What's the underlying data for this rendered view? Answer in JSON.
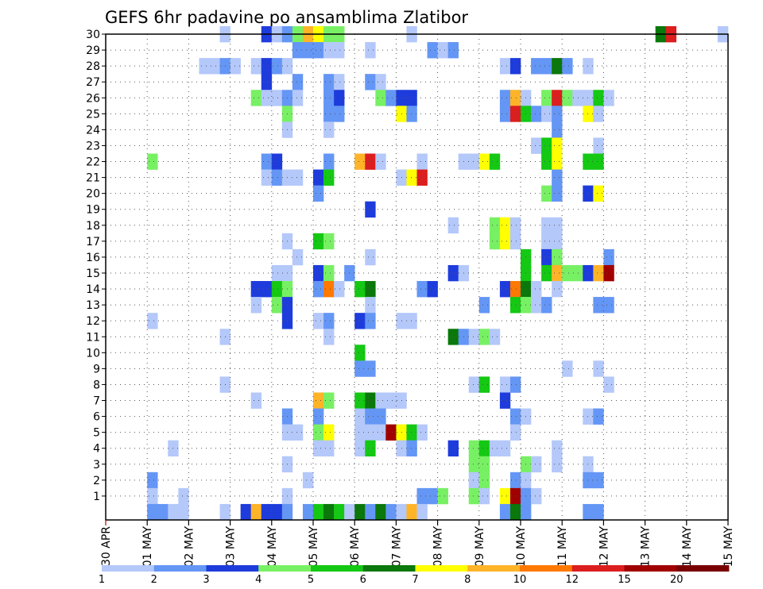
{
  "chart_data": {
    "type": "heatmap",
    "title": "GEFS 6hr padavine po ansamblima Zlatibor",
    "xlabel": "",
    "ylabel": "",
    "x_tick_labels": [
      "30 APR",
      "01 MAY",
      "02 MAY",
      "03 MAY",
      "04 MAY",
      "05 MAY",
      "06 MAY",
      "07 MAY",
      "08 MAY",
      "09 MAY",
      "10 MAY",
      "11 MAY",
      "12 MAY",
      "13 MAY",
      "14 MAY",
      "15 MAY"
    ],
    "y_tick_labels": [
      "1",
      "2",
      "3",
      "4",
      "5",
      "6",
      "7",
      "8",
      "9",
      "10",
      "11",
      "12",
      "13",
      "14",
      "15",
      "16",
      "17",
      "18",
      "19",
      "20",
      "21",
      "22",
      "23",
      "24",
      "25",
      "26",
      "27",
      "28",
      "29",
      "30"
    ],
    "n_times": 60,
    "n_members": 30,
    "grid": "dotted",
    "legend": {
      "position": "bottom",
      "labels": [
        "1",
        "2",
        "3",
        "4",
        "5",
        "6",
        "7",
        "8",
        "10",
        "12",
        "15",
        "20"
      ],
      "colors": [
        "#b4c8fa",
        "#6496f5",
        "#1e3cdc",
        "#78f064",
        "#14c814",
        "#0a780a",
        "#ffff00",
        "#ffb428",
        "#ff7800",
        "#dc1e1e",
        "#a00000",
        "#780000"
      ]
    },
    "color_levels": {
      "1": "#b4c8fa",
      "2": "#6496f5",
      "3": "#1e3cdc",
      "4": "#78f064",
      "5": "#14c814",
      "6": "#0a780a",
      "7": "#ffff00",
      "8": "#ffb428",
      "10": "#ff7800",
      "12": "#dc1e1e",
      "15": "#a00000",
      "20": "#780000"
    },
    "cells": [
      [
        30,
        11,
        1
      ],
      [
        30,
        15,
        3
      ],
      [
        30,
        16,
        1
      ],
      [
        30,
        17,
        2
      ],
      [
        30,
        18,
        4
      ],
      [
        30,
        19,
        8
      ],
      [
        30,
        20,
        7
      ],
      [
        30,
        21,
        4
      ],
      [
        30,
        22,
        4
      ],
      [
        30,
        29,
        1
      ],
      [
        30,
        53,
        6
      ],
      [
        30,
        54,
        12
      ],
      [
        30,
        59,
        1
      ],
      [
        29,
        18,
        2
      ],
      [
        29,
        19,
        2
      ],
      [
        29,
        20,
        2
      ],
      [
        29,
        21,
        1
      ],
      [
        29,
        22,
        1
      ],
      [
        29,
        25,
        1
      ],
      [
        29,
        31,
        2
      ],
      [
        29,
        32,
        1
      ],
      [
        29,
        33,
        2
      ],
      [
        28,
        9,
        1
      ],
      [
        28,
        10,
        1
      ],
      [
        28,
        11,
        2
      ],
      [
        28,
        12,
        1
      ],
      [
        28,
        14,
        1
      ],
      [
        28,
        15,
        3
      ],
      [
        28,
        16,
        2
      ],
      [
        28,
        17,
        1
      ],
      [
        28,
        38,
        1
      ],
      [
        28,
        39,
        3
      ],
      [
        28,
        41,
        2
      ],
      [
        28,
        42,
        2
      ],
      [
        28,
        43,
        6
      ],
      [
        28,
        44,
        2
      ],
      [
        28,
        46,
        1
      ],
      [
        27,
        15,
        3
      ],
      [
        27,
        18,
        2
      ],
      [
        27,
        21,
        2
      ],
      [
        27,
        22,
        1
      ],
      [
        27,
        25,
        2
      ],
      [
        27,
        26,
        1
      ],
      [
        26,
        14,
        4
      ],
      [
        26,
        15,
        1
      ],
      [
        26,
        16,
        1
      ],
      [
        26,
        17,
        2
      ],
      [
        26,
        18,
        1
      ],
      [
        26,
        21,
        2
      ],
      [
        26,
        22,
        3
      ],
      [
        26,
        26,
        4
      ],
      [
        26,
        27,
        2
      ],
      [
        26,
        28,
        3
      ],
      [
        26,
        29,
        3
      ],
      [
        26,
        38,
        2
      ],
      [
        26,
        39,
        8
      ],
      [
        26,
        40,
        1
      ],
      [
        26,
        42,
        4
      ],
      [
        26,
        43,
        12
      ],
      [
        26,
        44,
        4
      ],
      [
        26,
        45,
        1
      ],
      [
        26,
        46,
        1
      ],
      [
        26,
        47,
        5
      ],
      [
        26,
        48,
        1
      ],
      [
        25,
        17,
        4
      ],
      [
        25,
        21,
        2
      ],
      [
        25,
        22,
        2
      ],
      [
        25,
        28,
        7
      ],
      [
        25,
        29,
        2
      ],
      [
        25,
        38,
        2
      ],
      [
        25,
        39,
        12
      ],
      [
        25,
        40,
        5
      ],
      [
        25,
        41,
        2
      ],
      [
        25,
        42,
        1
      ],
      [
        25,
        43,
        2
      ],
      [
        25,
        46,
        7
      ],
      [
        25,
        47,
        1
      ],
      [
        24,
        17,
        1
      ],
      [
        24,
        21,
        1
      ],
      [
        24,
        43,
        2
      ],
      [
        23,
        41,
        1
      ],
      [
        23,
        42,
        5
      ],
      [
        23,
        43,
        7
      ],
      [
        23,
        47,
        1
      ],
      [
        22,
        4,
        4
      ],
      [
        22,
        15,
        2
      ],
      [
        22,
        16,
        3
      ],
      [
        22,
        21,
        2
      ],
      [
        22,
        24,
        8
      ],
      [
        22,
        25,
        12
      ],
      [
        22,
        26,
        1
      ],
      [
        22,
        30,
        1
      ],
      [
        22,
        34,
        1
      ],
      [
        22,
        35,
        1
      ],
      [
        22,
        36,
        7
      ],
      [
        22,
        37,
        5
      ],
      [
        22,
        42,
        5
      ],
      [
        22,
        43,
        7
      ],
      [
        22,
        46,
        5
      ],
      [
        22,
        47,
        5
      ],
      [
        21,
        15,
        1
      ],
      [
        21,
        16,
        2
      ],
      [
        21,
        17,
        1
      ],
      [
        21,
        18,
        1
      ],
      [
        21,
        20,
        3
      ],
      [
        21,
        21,
        5
      ],
      [
        21,
        28,
        1
      ],
      [
        21,
        29,
        7
      ],
      [
        21,
        30,
        12
      ],
      [
        21,
        43,
        2
      ],
      [
        20,
        20,
        2
      ],
      [
        20,
        42,
        4
      ],
      [
        20,
        43,
        2
      ],
      [
        20,
        46,
        3
      ],
      [
        20,
        47,
        7
      ],
      [
        19,
        25,
        3
      ],
      [
        18,
        33,
        1
      ],
      [
        18,
        37,
        4
      ],
      [
        18,
        38,
        7
      ],
      [
        18,
        39,
        1
      ],
      [
        18,
        42,
        1
      ],
      [
        18,
        43,
        1
      ],
      [
        17,
        17,
        1
      ],
      [
        17,
        20,
        5
      ],
      [
        17,
        21,
        4
      ],
      [
        17,
        37,
        4
      ],
      [
        17,
        38,
        7
      ],
      [
        17,
        39,
        1
      ],
      [
        17,
        42,
        1
      ],
      [
        17,
        43,
        1
      ],
      [
        16,
        18,
        1
      ],
      [
        16,
        25,
        1
      ],
      [
        16,
        40,
        5
      ],
      [
        16,
        42,
        3
      ],
      [
        16,
        43,
        4
      ],
      [
        16,
        48,
        2
      ],
      [
        15,
        16,
        1
      ],
      [
        15,
        17,
        1
      ],
      [
        15,
        20,
        3
      ],
      [
        15,
        21,
        4
      ],
      [
        15,
        23,
        2
      ],
      [
        15,
        33,
        3
      ],
      [
        15,
        34,
        1
      ],
      [
        15,
        40,
        5
      ],
      [
        15,
        42,
        5
      ],
      [
        15,
        43,
        8
      ],
      [
        15,
        44,
        4
      ],
      [
        15,
        45,
        4
      ],
      [
        15,
        46,
        3
      ],
      [
        15,
        47,
        8
      ],
      [
        15,
        48,
        15
      ],
      [
        14,
        14,
        3
      ],
      [
        14,
        15,
        3
      ],
      [
        14,
        16,
        5
      ],
      [
        14,
        17,
        4
      ],
      [
        14,
        20,
        2
      ],
      [
        14,
        21,
        10
      ],
      [
        14,
        22,
        1
      ],
      [
        14,
        24,
        5
      ],
      [
        14,
        25,
        6
      ],
      [
        14,
        30,
        2
      ],
      [
        14,
        31,
        3
      ],
      [
        14,
        38,
        3
      ],
      [
        14,
        39,
        10
      ],
      [
        14,
        40,
        6
      ],
      [
        14,
        41,
        1
      ],
      [
        14,
        43,
        1
      ],
      [
        13,
        14,
        1
      ],
      [
        13,
        16,
        4
      ],
      [
        13,
        17,
        3
      ],
      [
        13,
        25,
        1
      ],
      [
        13,
        36,
        2
      ],
      [
        13,
        39,
        5
      ],
      [
        13,
        40,
        4
      ],
      [
        13,
        41,
        1
      ],
      [
        13,
        42,
        2
      ],
      [
        13,
        47,
        2
      ],
      [
        13,
        48,
        2
      ],
      [
        12,
        4,
        1
      ],
      [
        12,
        17,
        3
      ],
      [
        12,
        20,
        1
      ],
      [
        12,
        21,
        2
      ],
      [
        12,
        24,
        3
      ],
      [
        12,
        25,
        2
      ],
      [
        12,
        28,
        1
      ],
      [
        12,
        29,
        1
      ],
      [
        11,
        11,
        1
      ],
      [
        11,
        21,
        1
      ],
      [
        11,
        33,
        6
      ],
      [
        11,
        34,
        2
      ],
      [
        11,
        35,
        1
      ],
      [
        11,
        36,
        4
      ],
      [
        11,
        37,
        1
      ],
      [
        10,
        24,
        5
      ],
      [
        9,
        24,
        2
      ],
      [
        9,
        25,
        2
      ],
      [
        9,
        44,
        1
      ],
      [
        9,
        47,
        1
      ],
      [
        8,
        11,
        1
      ],
      [
        8,
        35,
        1
      ],
      [
        8,
        36,
        5
      ],
      [
        8,
        38,
        1
      ],
      [
        8,
        39,
        2
      ],
      [
        8,
        48,
        1
      ],
      [
        7,
        14,
        1
      ],
      [
        7,
        20,
        8
      ],
      [
        7,
        21,
        4
      ],
      [
        7,
        24,
        5
      ],
      [
        7,
        25,
        6
      ],
      [
        7,
        26,
        1
      ],
      [
        7,
        27,
        1
      ],
      [
        7,
        28,
        1
      ],
      [
        7,
        38,
        3
      ],
      [
        6,
        17,
        2
      ],
      [
        6,
        20,
        2
      ],
      [
        6,
        24,
        1
      ],
      [
        6,
        25,
        2
      ],
      [
        6,
        26,
        2
      ],
      [
        6,
        39,
        2
      ],
      [
        6,
        40,
        1
      ],
      [
        6,
        46,
        1
      ],
      [
        6,
        47,
        2
      ],
      [
        5,
        17,
        1
      ],
      [
        5,
        18,
        1
      ],
      [
        5,
        20,
        4
      ],
      [
        5,
        21,
        7
      ],
      [
        5,
        24,
        1
      ],
      [
        5,
        25,
        1
      ],
      [
        5,
        26,
        1
      ],
      [
        5,
        27,
        15
      ],
      [
        5,
        28,
        7
      ],
      [
        5,
        29,
        5
      ],
      [
        5,
        30,
        1
      ],
      [
        5,
        39,
        1
      ],
      [
        4,
        6,
        1
      ],
      [
        4,
        20,
        1
      ],
      [
        4,
        21,
        1
      ],
      [
        4,
        24,
        1
      ],
      [
        4,
        25,
        5
      ],
      [
        4,
        28,
        1
      ],
      [
        4,
        29,
        2
      ],
      [
        4,
        33,
        3
      ],
      [
        4,
        35,
        4
      ],
      [
        4,
        36,
        5
      ],
      [
        4,
        37,
        1
      ],
      [
        4,
        38,
        1
      ],
      [
        4,
        43,
        1
      ],
      [
        3,
        17,
        1
      ],
      [
        3,
        35,
        4
      ],
      [
        3,
        36,
        4
      ],
      [
        3,
        40,
        4
      ],
      [
        3,
        41,
        1
      ],
      [
        3,
        43,
        1
      ],
      [
        3,
        46,
        1
      ],
      [
        2,
        4,
        2
      ],
      [
        2,
        19,
        1
      ],
      [
        2,
        35,
        1
      ],
      [
        2,
        36,
        4
      ],
      [
        2,
        39,
        2
      ],
      [
        2,
        40,
        1
      ],
      [
        2,
        46,
        2
      ],
      [
        2,
        47,
        2
      ],
      [
        1,
        4,
        1
      ],
      [
        1,
        7,
        1
      ],
      [
        1,
        17,
        1
      ],
      [
        1,
        30,
        2
      ],
      [
        1,
        31,
        2
      ],
      [
        1,
        32,
        4
      ],
      [
        1,
        35,
        4
      ],
      [
        1,
        36,
        1
      ],
      [
        1,
        38,
        7
      ],
      [
        1,
        39,
        15
      ],
      [
        1,
        40,
        2
      ],
      [
        1,
        41,
        1
      ],
      [
        0,
        4,
        2
      ],
      [
        0,
        5,
        2
      ],
      [
        0,
        6,
        1
      ],
      [
        0,
        7,
        1
      ],
      [
        0,
        11,
        1
      ],
      [
        0,
        13,
        3
      ],
      [
        0,
        14,
        8
      ],
      [
        0,
        15,
        3
      ],
      [
        0,
        16,
        3
      ],
      [
        0,
        17,
        2
      ],
      [
        0,
        19,
        2
      ],
      [
        0,
        20,
        5
      ],
      [
        0,
        21,
        6
      ],
      [
        0,
        22,
        5
      ],
      [
        0,
        23,
        1
      ],
      [
        0,
        24,
        6
      ],
      [
        0,
        25,
        2
      ],
      [
        0,
        26,
        6
      ],
      [
        0,
        27,
        2
      ],
      [
        0,
        28,
        1
      ],
      [
        0,
        29,
        8
      ],
      [
        0,
        30,
        1
      ],
      [
        0,
        38,
        2
      ],
      [
        0,
        39,
        6
      ],
      [
        0,
        40,
        2
      ],
      [
        0,
        46,
        2
      ],
      [
        0,
        47,
        2
      ]
    ]
  }
}
